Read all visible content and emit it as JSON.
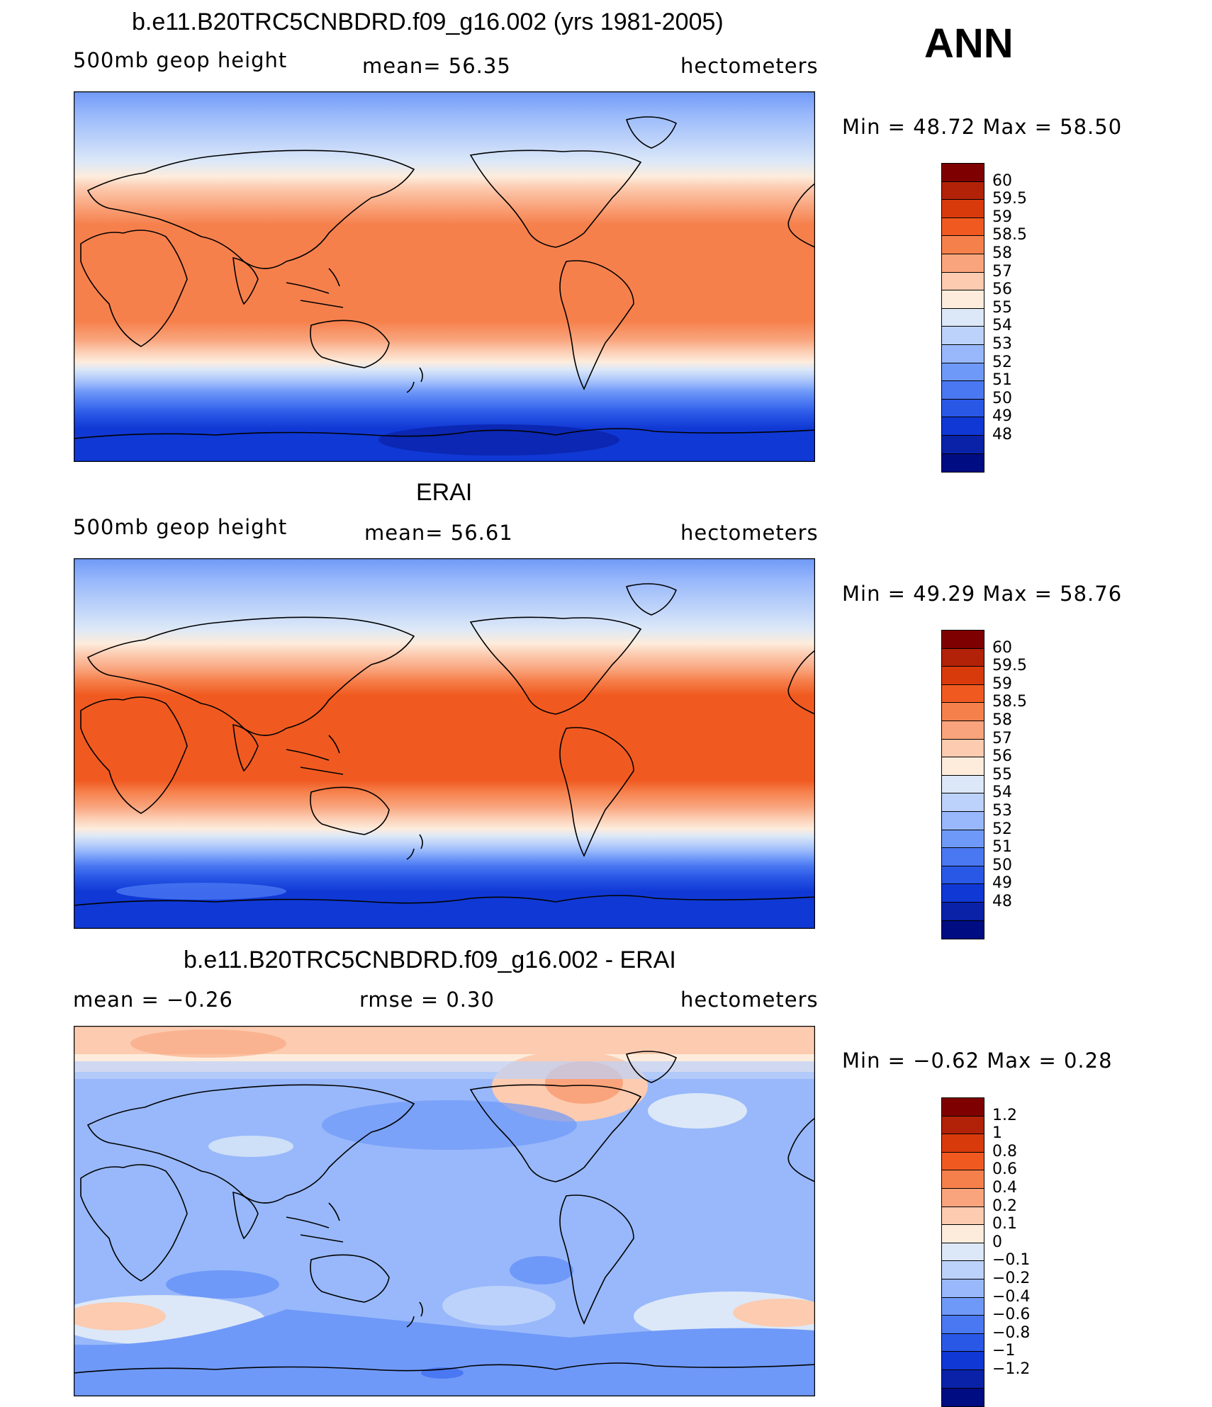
{
  "season_label": "ANN",
  "panels": [
    {
      "title": "b.e11.B20TRC5CNBDRD.f09_g16.002 (yrs 1981-2005)",
      "left_label": "500mb geop height",
      "center_label": "mean=   56.35",
      "units": "hectometers",
      "minmax": "Min =   48.72 Max =   58.50",
      "colorbar_labels": [
        "60",
        "59.5",
        "59",
        "58.5",
        "58",
        "57",
        "56",
        "55",
        "54",
        "53",
        "52",
        "51",
        "50",
        "49",
        "48"
      ],
      "colorbar_colors": [
        "#7f0000",
        "#b22208",
        "#d93a0c",
        "#f05a20",
        "#f6804c",
        "#f9a47c",
        "#fccbb0",
        "#fdecdc",
        "#dce8f8",
        "#bcd2fa",
        "#98b8fb",
        "#6f99f8",
        "#4a78f2",
        "#2a58e6",
        "#1038d4",
        "#0a22a8",
        "#000c82"
      ]
    },
    {
      "title": "ERAI",
      "left_label": "500mb geop height",
      "center_label": "mean=   56.61",
      "units": "hectometers",
      "minmax": "Min =   49.29 Max =   58.76",
      "colorbar_labels": [
        "60",
        "59.5",
        "59",
        "58.5",
        "58",
        "57",
        "56",
        "55",
        "54",
        "53",
        "52",
        "51",
        "50",
        "49",
        "48"
      ],
      "colorbar_colors": [
        "#7f0000",
        "#b22208",
        "#d93a0c",
        "#f05a20",
        "#f6804c",
        "#f9a47c",
        "#fccbb0",
        "#fdecdc",
        "#dce8f8",
        "#bcd2fa",
        "#98b8fb",
        "#6f99f8",
        "#4a78f2",
        "#2a58e6",
        "#1038d4",
        "#0a22a8",
        "#000c82"
      ]
    },
    {
      "title": "b.e11.B20TRC5CNBDRD.f09_g16.002 - ERAI",
      "left_label": "mean =   −0.26",
      "center_label": "rmse =    0.30",
      "units": "hectometers",
      "minmax": "Min =   −0.62 Max =    0.28",
      "colorbar_labels": [
        "1.2",
        "1",
        "0.8",
        "0.6",
        "0.4",
        "0.2",
        "0.1",
        "0",
        "−0.1",
        "−0.2",
        "−0.4",
        "−0.6",
        "−0.8",
        "−1",
        "−1.2"
      ],
      "colorbar_colors": [
        "#7f0000",
        "#b22208",
        "#d93a0c",
        "#f05a20",
        "#f6804c",
        "#f9a47c",
        "#fccbb0",
        "#fdecdc",
        "#dce8f8",
        "#bcd2fa",
        "#98b8fb",
        "#6f99f8",
        "#4a78f2",
        "#2a58e6",
        "#1038d4",
        "#0a22a8",
        "#000c82"
      ]
    }
  ]
}
